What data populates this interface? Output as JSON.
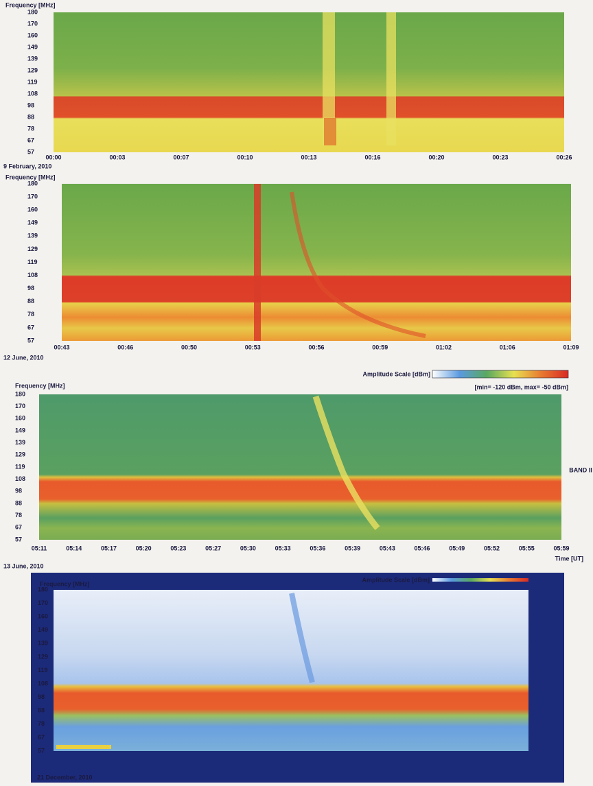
{
  "panels": [
    {
      "y_axis_title": "Frequency [MHz]",
      "y_ticks": [
        "180",
        "170",
        "160",
        "149",
        "139",
        "129",
        "119",
        "108",
        "98",
        "88",
        "78",
        "67",
        "57"
      ],
      "x_ticks": [
        "00:00",
        "00:03",
        "00:07",
        "00:10",
        "00:13",
        "00:16",
        "00:20",
        "00:23",
        "00:26"
      ],
      "caption": "9 February, 2010"
    },
    {
      "y_axis_title": "Frequency [MHz]",
      "y_ticks": [
        "180",
        "170",
        "160",
        "149",
        "139",
        "129",
        "119",
        "108",
        "98",
        "88",
        "78",
        "67",
        "57"
      ],
      "x_ticks": [
        "00:43",
        "00:46",
        "00:50",
        "00:53",
        "00:56",
        "00:59",
        "01:02",
        "01:06",
        "01:09"
      ],
      "caption": "12 June, 2010"
    },
    {
      "y_axis_title": "Frequency [MHz]",
      "amplitude_scale_label": "Amplitude Scale [dBm]",
      "amplitude_range": "[min= -120 dBm, max= -50 dBm]",
      "y_ticks": [
        "180",
        "170",
        "160",
        "149",
        "139",
        "129",
        "119",
        "108",
        "98",
        "88",
        "78",
        "67",
        "57"
      ],
      "x_ticks": [
        "05:11",
        "05:14",
        "05:17",
        "05:20",
        "05:23",
        "05:27",
        "05:30",
        "05:33",
        "05:36",
        "05:39",
        "05:43",
        "05:46",
        "05:49",
        "05:52",
        "05:55",
        "05:59"
      ],
      "band_label": "BAND II",
      "time_label": "Time [UT]",
      "caption": "13 June, 2010"
    },
    {
      "y_axis_title": "Frequency [MHz]",
      "amplitude_scale_label": "Amplitude Scale [dBm]",
      "y_ticks": [
        "180",
        "170",
        "160",
        "149",
        "139",
        "129",
        "119",
        "108",
        "98",
        "88",
        "78",
        "67",
        "57"
      ],
      "caption": "21 December, 2010"
    }
  ]
}
